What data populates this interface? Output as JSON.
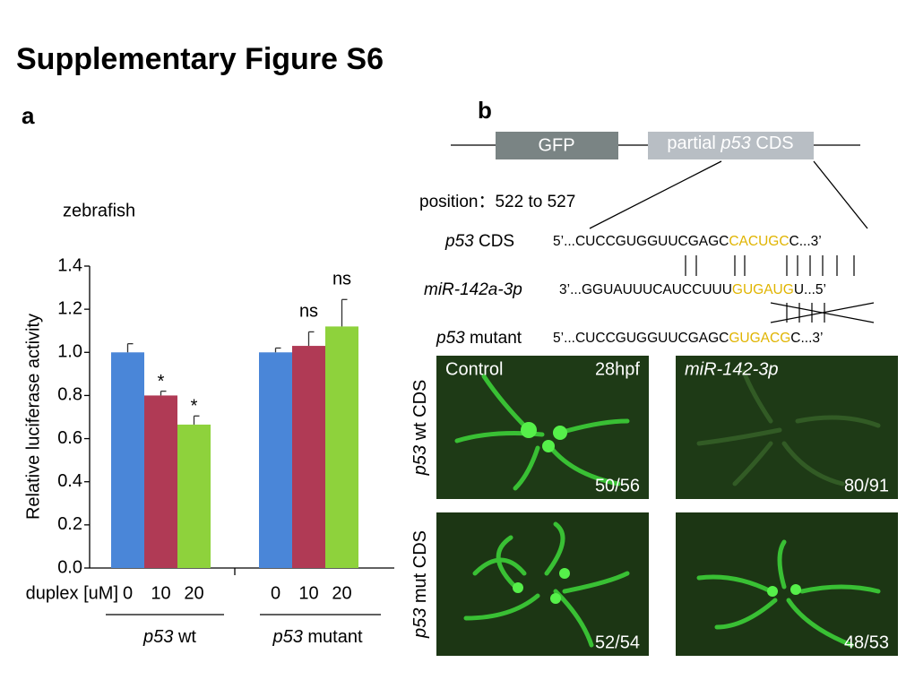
{
  "header": {
    "title": "Supplementary Figure S6"
  },
  "panel_a": {
    "letter": "a"
  },
  "chart_data": {
    "type": "bar",
    "title": "zebrafish",
    "categories": [
      "p53 wt",
      "p53 mutant"
    ],
    "x_label": "duplex [uM]",
    "y_label": "Relative luciferase activity",
    "series": [
      {
        "name": "0",
        "color": "#4a86d8",
        "values": [
          1.0,
          1.0
        ],
        "errors": [
          0.04,
          0.02
        ]
      },
      {
        "name": "10",
        "color": "#b03a55",
        "values": [
          0.8,
          1.03
        ],
        "errors": [
          0.02,
          0.065
        ],
        "marks": [
          "*",
          "ns"
        ]
      },
      {
        "name": "20",
        "color": "#8ed23c",
        "values": [
          0.665,
          1.12
        ],
        "errors": [
          0.04,
          0.125
        ],
        "marks": [
          "*",
          "ns"
        ]
      }
    ],
    "ylim": [
      0,
      1.4
    ],
    "yticks": [
      {
        "value": 0,
        "label": "0.0"
      },
      0.2,
      0.4,
      0.6,
      0.8,
      {
        "value": 1,
        "label": "1.0"
      },
      1.2,
      1.4
    ],
    "grid": false
  },
  "panel_b": {
    "letter": "b",
    "construct": {
      "reporter": "GFP",
      "insert": "partial p53 CDS"
    },
    "position": "position：522 to 527",
    "highlight_color": "#e0b400",
    "sequences": [
      {
        "label": "p53 CDS",
        "parts": [
          "5’...CUCCGUGGUUCGAGC",
          "CACUGC",
          "C...3’"
        ]
      },
      {
        "label": "miR-142a-3p",
        "parts": [
          "3’...GGUAUUUCAUCCUUU",
          "GUGAUG",
          "U...5’"
        ]
      },
      {
        "label": "p53 mutant",
        "parts": [
          "5’...CUCCGUGGUUCGAGC",
          "GUGACG",
          "C...3’"
        ]
      }
    ],
    "row_labels": [
      "p53 wt CDS",
      "p53 mut CDS"
    ],
    "panels": [
      {
        "condition": "Control",
        "time": "28hpf",
        "ratio": "50/56"
      },
      {
        "condition": "miR-142-3p",
        "ratio": "80/91"
      },
      {
        "ratio": "52/54"
      },
      {
        "ratio": "48/53"
      }
    ]
  }
}
